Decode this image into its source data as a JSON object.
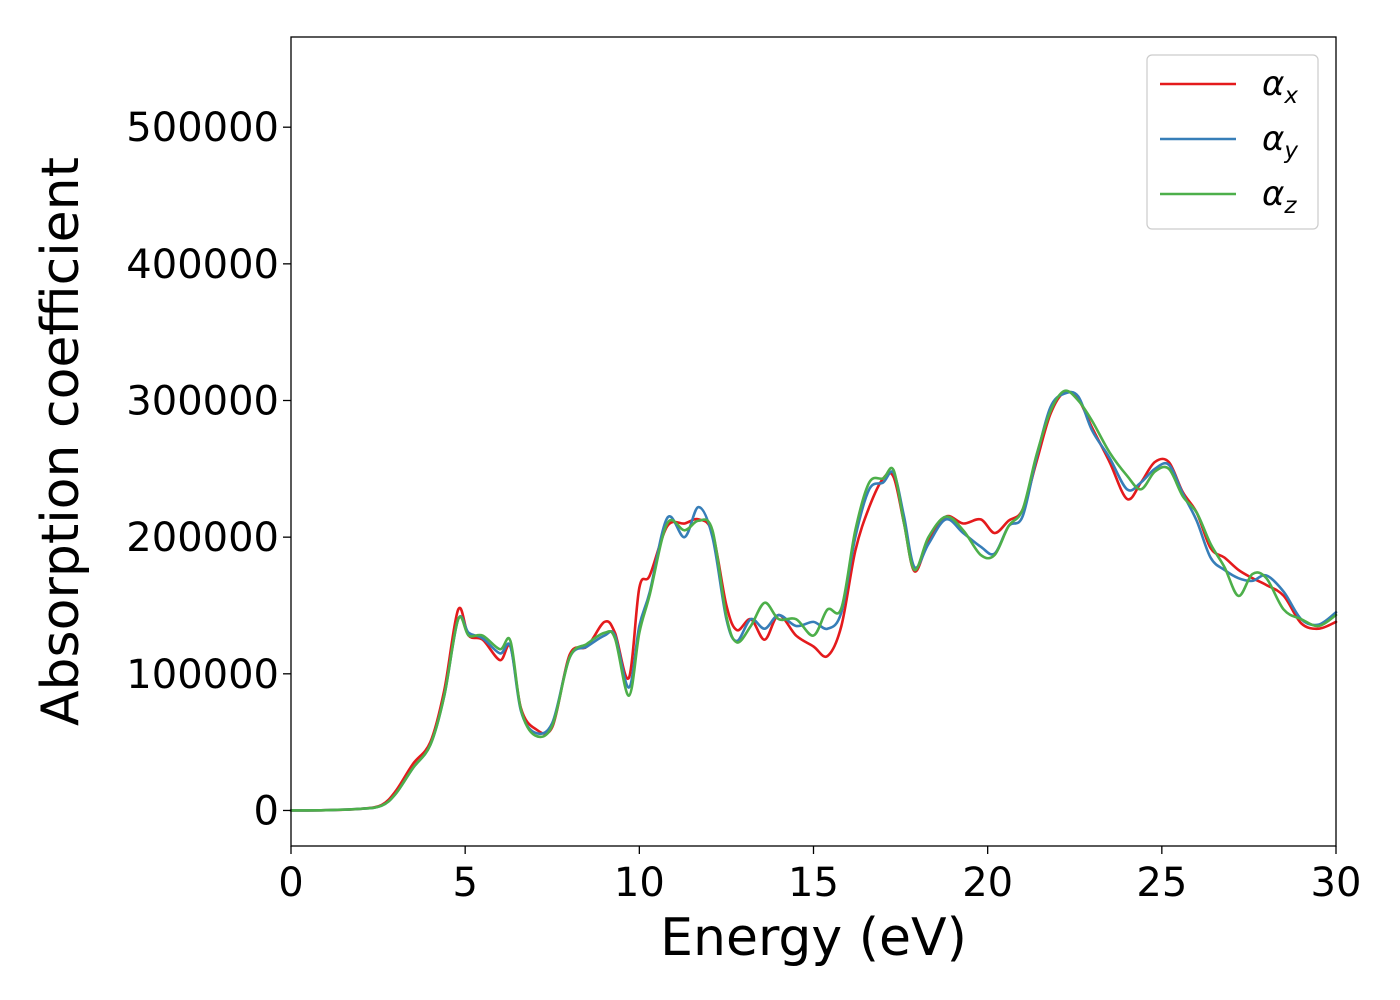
{
  "chart_data": {
    "type": "line",
    "title": "",
    "xlabel": "Energy (eV)",
    "ylabel": "Absorption coefficient",
    "xlim": [
      0,
      30
    ],
    "ylim": [
      -26000,
      566000
    ],
    "xticks": [
      0,
      5,
      10,
      15,
      20,
      25,
      30
    ],
    "yticks": [
      0,
      100000,
      200000,
      300000,
      400000,
      500000
    ],
    "grid": false,
    "legend_position": "top-right",
    "series": [
      {
        "name": "α_x",
        "label_base": "α",
        "label_sub": "x",
        "color": "#e41a1c",
        "x": [
          0,
          1,
          2,
          2.6,
          3,
          3.5,
          4,
          4.4,
          4.8,
          5.1,
          5.5,
          6,
          6.3,
          6.6,
          7,
          7.5,
          8,
          8.5,
          9,
          9.3,
          9.7,
          10,
          10.3,
          10.8,
          11.3,
          11.7,
          12.1,
          12.5,
          12.8,
          13.2,
          13.6,
          14,
          14.5,
          15,
          15.4,
          15.8,
          16.2,
          16.6,
          17,
          17.3,
          17.6,
          17.9,
          18.3,
          18.8,
          19.3,
          19.8,
          20.2,
          20.6,
          21,
          21.4,
          21.8,
          22.2,
          22.6,
          23,
          23.5,
          24,
          24.4,
          24.8,
          25.2,
          25.6,
          26,
          26.4,
          26.8,
          27.2,
          27.6,
          28,
          28.5,
          29,
          29.5,
          30
        ],
        "y": [
          0,
          200,
          1200,
          4000,
          14000,
          34000,
          50000,
          88000,
          147000,
          128000,
          125000,
          110000,
          120000,
          75000,
          60000,
          61000,
          114000,
          120000,
          138000,
          130000,
          97000,
          163000,
          172000,
          208000,
          210000,
          213000,
          203000,
          150000,
          132000,
          140000,
          125000,
          143000,
          128000,
          120000,
          113000,
          135000,
          190000,
          222000,
          243000,
          244000,
          210000,
          175000,
          197000,
          215000,
          210000,
          213000,
          203000,
          212000,
          220000,
          255000,
          290000,
          306000,
          301000,
          280000,
          255000,
          228000,
          240000,
          255000,
          255000,
          233000,
          218000,
          192000,
          185000,
          176000,
          170000,
          165000,
          157000,
          137000,
          133000,
          138000
        ]
      },
      {
        "name": "α_y",
        "label_base": "α",
        "label_sub": "y",
        "color": "#377eb8",
        "x": [
          0,
          1,
          2,
          2.6,
          3,
          3.5,
          4,
          4.4,
          4.8,
          5.1,
          5.5,
          6,
          6.3,
          6.6,
          7,
          7.5,
          8,
          8.5,
          9,
          9.3,
          9.7,
          10,
          10.3,
          10.8,
          11.3,
          11.7,
          12.1,
          12.5,
          12.8,
          13.2,
          13.6,
          14,
          14.5,
          15,
          15.4,
          15.8,
          16.2,
          16.6,
          17,
          17.3,
          17.6,
          17.9,
          18.3,
          18.8,
          19.3,
          19.8,
          20.2,
          20.6,
          21,
          21.4,
          21.8,
          22.2,
          22.6,
          23,
          23.5,
          24,
          24.4,
          24.8,
          25.2,
          25.6,
          26,
          26.4,
          26.8,
          27.2,
          27.6,
          28,
          28.5,
          29,
          29.5,
          30
        ],
        "y": [
          0,
          200,
          1200,
          3500,
          12000,
          31000,
          48000,
          84000,
          140000,
          130000,
          126000,
          115000,
          120000,
          73000,
          57000,
          64000,
          112000,
          120000,
          128000,
          128000,
          90000,
          135000,
          160000,
          214000,
          200000,
          222000,
          200000,
          140000,
          124000,
          140000,
          133000,
          143000,
          135000,
          138000,
          133000,
          145000,
          200000,
          235000,
          240000,
          247000,
          215000,
          178000,
          195000,
          213000,
          203000,
          193000,
          188000,
          208000,
          215000,
          258000,
          295000,
          305000,
          303000,
          278000,
          258000,
          235000,
          240000,
          250000,
          253000,
          232000,
          212000,
          185000,
          176000,
          170000,
          168000,
          172000,
          160000,
          140000,
          136000,
          145000
        ]
      },
      {
        "name": "α_z",
        "label_base": "α",
        "label_sub": "z",
        "color": "#4daf4a",
        "x": [
          0,
          1,
          2,
          2.6,
          3,
          3.5,
          4,
          4.4,
          4.8,
          5.1,
          5.5,
          6,
          6.3,
          6.6,
          7,
          7.5,
          8,
          8.5,
          9,
          9.3,
          9.7,
          10,
          10.3,
          10.8,
          11.3,
          11.7,
          12.1,
          12.5,
          12.8,
          13.2,
          13.6,
          14,
          14.5,
          15,
          15.4,
          15.8,
          16.2,
          16.6,
          17,
          17.3,
          17.6,
          17.9,
          18.3,
          18.8,
          19.3,
          19.8,
          20.2,
          20.6,
          21,
          21.4,
          21.8,
          22.2,
          22.6,
          23,
          23.5,
          24,
          24.4,
          24.8,
          25.2,
          25.6,
          26,
          26.4,
          26.8,
          27.2,
          27.6,
          28,
          28.5,
          29,
          29.5,
          30
        ],
        "y": [
          0,
          200,
          1200,
          3500,
          12000,
          31000,
          48000,
          84000,
          140000,
          128000,
          128000,
          118000,
          124000,
          74000,
          55000,
          62000,
          112000,
          122000,
          130000,
          126000,
          84000,
          130000,
          158000,
          210000,
          205000,
          212000,
          205000,
          142000,
          123000,
          135000,
          152000,
          140000,
          140000,
          128000,
          147000,
          148000,
          205000,
          240000,
          243000,
          249000,
          210000,
          176000,
          200000,
          215000,
          205000,
          187000,
          187000,
          208000,
          220000,
          260000,
          292000,
          307000,
          300000,
          285000,
          262000,
          245000,
          235000,
          248000,
          250000,
          230000,
          218000,
          195000,
          178000,
          157000,
          173000,
          170000,
          147000,
          140000,
          135000,
          143000
        ]
      }
    ]
  }
}
